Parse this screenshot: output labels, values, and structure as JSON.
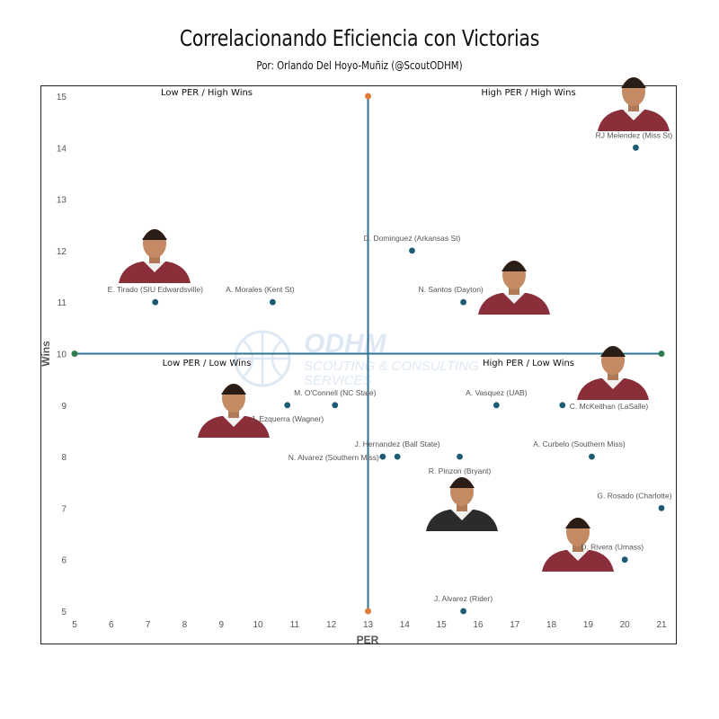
{
  "chart_data": {
    "type": "scatter",
    "title": "Correlacionando Eficiencia con Victorias",
    "subtitle": "Por: Orlando Del Hoyo-Muñiz (@ScoutODHM)",
    "xlabel": "PER",
    "ylabel": "Wins",
    "xlim": [
      5,
      21
    ],
    "ylim": [
      5,
      15
    ],
    "xticks": [
      "5",
      "6",
      "7",
      "8",
      "9",
      "10",
      "11",
      "12",
      "13",
      "14",
      "15",
      "16",
      "17",
      "18",
      "19",
      "20",
      "21"
    ],
    "yticks": [
      "5",
      "6",
      "7",
      "8",
      "9",
      "10",
      "11",
      "12",
      "13",
      "14",
      "15"
    ],
    "grid": false,
    "reference_lines": {
      "x": 13,
      "y": 10
    },
    "quadrants": {
      "top_left": "Low PER / High Wins",
      "top_right": "High PER / High Wins",
      "bottom_left": "Low PER / Low Wins",
      "bottom_right": "High PER / Low Wins"
    },
    "watermark": {
      "brand": "ODHM",
      "line1": "SCOUTING & CONSULTING",
      "line2": "SERVICES"
    },
    "point_color": "#1d5a73",
    "line_color": "#2e7494",
    "points": [
      {
        "label": "RJ Melendez (Miss St)",
        "x": 20.3,
        "y": 14,
        "photo": true
      },
      {
        "label": "D. Dominguez (Arkansas St)",
        "x": 14.2,
        "y": 12,
        "photo": false
      },
      {
        "label": "E. Tirado (SIU Edwardsville)",
        "x": 7.2,
        "y": 11,
        "photo": true
      },
      {
        "label": "A. Morales (Kent St)",
        "x": 10.4,
        "y": 11,
        "photo": false
      },
      {
        "label": "N. Santos (Dayton)",
        "x": 15.6,
        "y": 11,
        "photo": true
      },
      {
        "label": "M. O'Connell (NC State)",
        "x": 12.1,
        "y": 9,
        "photo": false
      },
      {
        "label": "J. Ezquerra (Wagner)",
        "x": 10.8,
        "y": 9,
        "photo": true
      },
      {
        "label": "A. Vasquez (UAB)",
        "x": 16.5,
        "y": 9,
        "photo": false
      },
      {
        "label": "C. McKeithan (LaSalle)",
        "x": 18.3,
        "y": 9,
        "photo": true
      },
      {
        "label": "J. Hernandez (Ball State)",
        "x": 13.8,
        "y": 8,
        "photo": false
      },
      {
        "label": "N. Alvarez (Southern Miss)",
        "x": 13.4,
        "y": 8,
        "photo": false
      },
      {
        "label": "R. Pinzon (Bryant)",
        "x": 15.5,
        "y": 8,
        "photo": true
      },
      {
        "label": "A. Curbelo (Southern Miss)",
        "x": 19.1,
        "y": 8,
        "photo": false
      },
      {
        "label": "G. Rosado (Charlotte)",
        "x": 21.0,
        "y": 7,
        "photo": false
      },
      {
        "label": "D. Rivera (Umass)",
        "x": 20.0,
        "y": 6,
        "photo": true
      },
      {
        "label": "J. Alvarez (Rider)",
        "x": 15.6,
        "y": 5,
        "photo": false
      }
    ]
  }
}
